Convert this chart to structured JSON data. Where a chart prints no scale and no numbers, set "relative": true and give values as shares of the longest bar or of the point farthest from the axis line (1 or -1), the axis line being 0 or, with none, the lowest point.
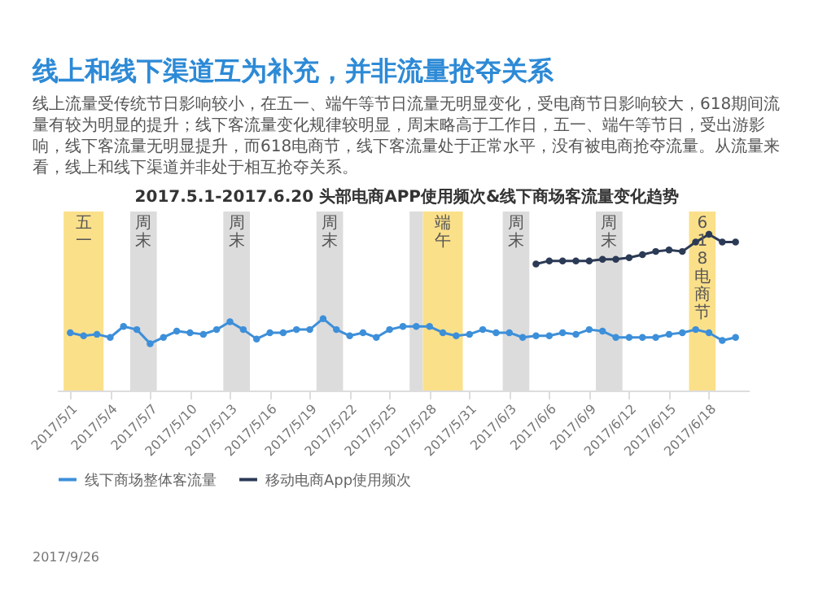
{
  "chart_data": {
    "type": "line",
    "title": "线上和线下渠道互为补充，并非流量抢夺关系",
    "subtitle": "线上流量受传统节日影响较小，在五一、端午等节日流量无明显变化，受电商节日影响较大，618期间流量有较为明显的提升；线下客流量变化规律较明显，周末略高于工作日，五一、端午等节日，受出游影响，线下客流量无明显提升，而618电商节，线下客流量处于正常水平，没有被电商抢夺流量。从流量来看，线上和线下渠道并非处于相互抢夺关系。",
    "annotations": [
      "2017.5.1-2017.6.20 头部电商APP使用频次&线下商场客流量变化趋势",
      "2017/9/26"
    ],
    "x": [
      "2017-05-01",
      "2017-05-02",
      "2017-05-03",
      "2017-05-04",
      "2017-05-05",
      "2017-05-06",
      "2017-05-07",
      "2017-05-08",
      "2017-05-09",
      "2017-05-10",
      "2017-05-11",
      "2017-05-12",
      "2017-05-13",
      "2017-05-14",
      "2017-05-15",
      "2017-05-16",
      "2017-05-17",
      "2017-05-18",
      "2017-05-19",
      "2017-05-20",
      "2017-05-21",
      "2017-05-22",
      "2017-05-23",
      "2017-05-24",
      "2017-05-25",
      "2017-05-26",
      "2017-05-27",
      "2017-05-28",
      "2017-05-29",
      "2017-05-30",
      "2017-05-31",
      "2017-06-01",
      "2017-06-02",
      "2017-06-03",
      "2017-06-04",
      "2017-06-05",
      "2017-06-06",
      "2017-06-07",
      "2017-06-08",
      "2017-06-09",
      "2017-06-10",
      "2017-06-11",
      "2017-06-12",
      "2017-06-13",
      "2017-06-14",
      "2017-06-15",
      "2017-06-16",
      "2017-06-17",
      "2017-06-18",
      "2017-06-19",
      "2017-06-20"
    ],
    "xlim": [
      "2017-04-30",
      "2017-06-21"
    ],
    "xticks": [
      {
        "value": "2017-05-01",
        "label": "2017/5/1"
      },
      {
        "value": "2017-05-04",
        "label": "2017/5/4"
      },
      {
        "value": "2017-05-07",
        "label": "2017/5/7"
      },
      {
        "value": "2017-05-10",
        "label": "2017/5/10"
      },
      {
        "value": "2017-05-13",
        "label": "2017/5/13"
      },
      {
        "value": "2017-05-16",
        "label": "2017/5/16"
      },
      {
        "value": "2017-05-19",
        "label": "2017/5/19"
      },
      {
        "value": "2017-05-22",
        "label": "2017/5/22"
      },
      {
        "value": "2017-05-25",
        "label": "2017/5/25"
      },
      {
        "value": "2017-05-28",
        "label": "2017/5/28"
      },
      {
        "value": "2017-05-31",
        "label": "2017/5/31"
      },
      {
        "value": "2017-06-03",
        "label": "2017/6/3"
      },
      {
        "value": "2017-06-06",
        "label": "2017/6/6"
      },
      {
        "value": "2017-06-09",
        "label": "2017/6/9"
      },
      {
        "value": "2017-06-12",
        "label": "2017/6/12"
      },
      {
        "value": "2017-06-15",
        "label": "2017/6/15"
      },
      {
        "value": "2017-06-18",
        "label": "2017/6/18"
      }
    ],
    "relative": true,
    "series": [
      {
        "name": "线下商场整体客流量",
        "color": "#3d8fd9",
        "values": [
          0.37,
          0.35,
          0.36,
          0.34,
          0.41,
          0.39,
          0.3,
          0.34,
          0.38,
          0.37,
          0.36,
          0.39,
          0.44,
          0.39,
          0.33,
          0.37,
          0.37,
          0.39,
          0.39,
          0.46,
          0.39,
          0.35,
          0.37,
          0.34,
          0.39,
          0.41,
          0.41,
          0.41,
          0.37,
          0.35,
          0.36,
          0.39,
          0.37,
          0.37,
          0.34,
          0.35,
          0.35,
          0.37,
          0.36,
          0.39,
          0.38,
          0.34,
          0.34,
          0.34,
          0.34,
          0.36,
          0.37,
          0.39,
          0.37,
          0.32,
          0.34
        ]
      },
      {
        "name": "移动电商App使用频次",
        "color": "#2b3a55",
        "values": [
          null,
          null,
          null,
          null,
          null,
          null,
          null,
          null,
          null,
          null,
          null,
          null,
          null,
          null,
          null,
          null,
          null,
          null,
          null,
          null,
          null,
          null,
          null,
          null,
          null,
          null,
          null,
          null,
          null,
          null,
          null,
          null,
          null,
          null,
          null,
          0.81,
          0.83,
          0.83,
          0.83,
          0.83,
          0.84,
          0.84,
          0.85,
          0.87,
          0.89,
          0.9,
          0.89,
          0.95,
          1,
          0.95,
          0.95
        ]
      }
    ],
    "bands": [
      {
        "axis": "x",
        "from": "2017-04-30T12:00",
        "to": "2017-05-03T12:00",
        "label": "五一",
        "color": "#fbe08a"
      },
      {
        "axis": "x",
        "from": "2017-05-05T12:00",
        "to": "2017-05-07T12:00",
        "label": "周末",
        "color": "#dcdcdc"
      },
      {
        "axis": "x",
        "from": "2017-05-12T12:00",
        "to": "2017-05-14T12:00",
        "label": "周末",
        "color": "#dcdcdc"
      },
      {
        "axis": "x",
        "from": "2017-05-19T12:00",
        "to": "2017-05-21T12:00",
        "label": "周末",
        "color": "#dcdcdc"
      },
      {
        "axis": "x",
        "from": "2017-05-26T12:00",
        "to": "2017-05-27T12:00",
        "label": null,
        "color": "#dcdcdc"
      },
      {
        "axis": "x",
        "from": "2017-05-27T12:00",
        "to": "2017-05-30T12:00",
        "label": "端午",
        "color": "#fbe08a"
      },
      {
        "axis": "x",
        "from": "2017-06-02T12:00",
        "to": "2017-06-04T12:00",
        "label": "周末",
        "color": "#dcdcdc"
      },
      {
        "axis": "x",
        "from": "2017-06-09T12:00",
        "to": "2017-06-11T12:00",
        "label": "周末",
        "color": "#dcdcdc"
      },
      {
        "axis": "x",
        "from": "2017-06-16T12:00",
        "to": "2017-06-18T12:00",
        "label": "618电商节",
        "color": "#fbe08a"
      }
    ],
    "marker": "circle",
    "legend": "bottom"
  }
}
